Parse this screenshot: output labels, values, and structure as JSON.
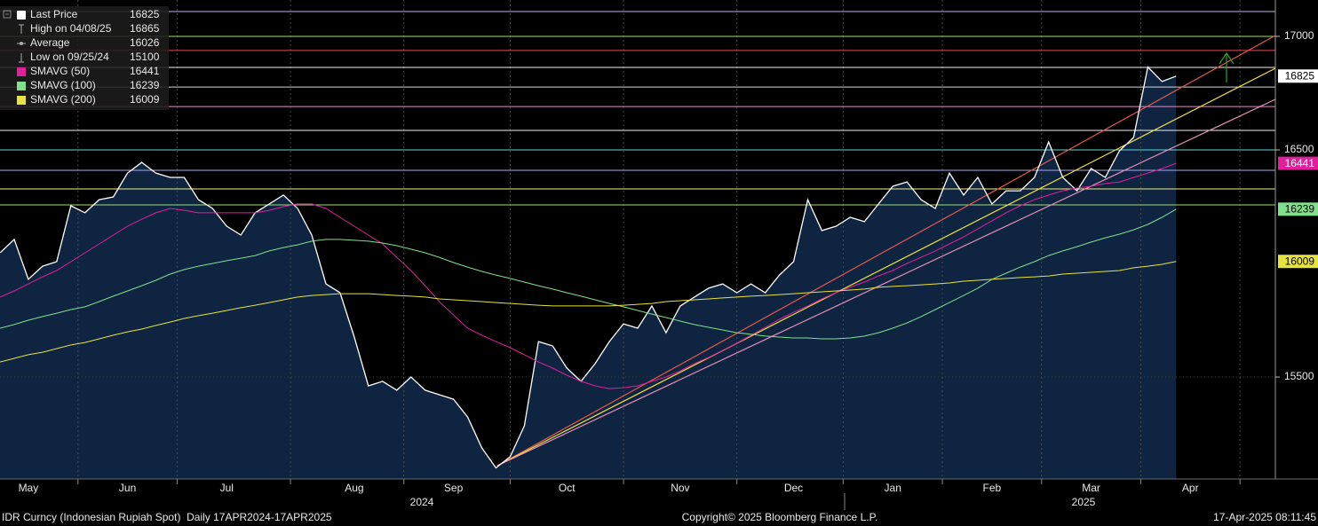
{
  "chart_data": {
    "type": "line",
    "categories": [
      null,
      null,
      "May",
      null,
      null,
      null,
      null,
      null,
      null,
      "Jun",
      null,
      null,
      null,
      null,
      null,
      null,
      "Jul",
      null,
      null,
      null,
      null,
      null,
      null,
      null,
      null,
      "Aug",
      null,
      null,
      null,
      null,
      null,
      null,
      "Sep",
      null,
      null,
      null,
      null,
      null,
      null,
      null,
      "Oct",
      null,
      null,
      null,
      null,
      null,
      null,
      null,
      "Nov",
      null,
      null,
      null,
      null,
      null,
      null,
      null,
      "Dec",
      null,
      null,
      null,
      null,
      null,
      null,
      "Jan",
      null,
      null,
      null,
      null,
      null,
      null,
      "Feb",
      null,
      null,
      null,
      null,
      null,
      null,
      "Mar",
      null,
      null,
      null,
      null,
      null,
      null,
      "Apr",
      null,
      null,
      null,
      null,
      null
    ],
    "years": [
      "2024",
      "2025"
    ],
    "series": [
      {
        "name": "Last Price",
        "color": "#ffffff",
        "fill": "#0e2441",
        "values": [
          16047,
          16106,
          15930,
          15988,
          16008,
          16254,
          16223,
          16281,
          16293,
          16398,
          16445,
          16398,
          16379,
          16379,
          16281,
          16242,
          16164,
          16125,
          16223,
          16262,
          16301,
          16242,
          16125,
          15910,
          15871,
          15676,
          15461,
          15481,
          15442,
          15500,
          15442,
          15422,
          15402,
          15324,
          15188,
          15100,
          15149,
          15285,
          15656,
          15637,
          15539,
          15481,
          15559,
          15656,
          15734,
          15715,
          15813,
          15695,
          15813,
          15852,
          15891,
          15910,
          15871,
          15910,
          15871,
          15949,
          16008,
          16281,
          16145,
          16164,
          16203,
          16184,
          16262,
          16340,
          16359,
          16281,
          16242,
          16398,
          16301,
          16379,
          16262,
          16320,
          16320,
          16379,
          16535,
          16379,
          16320,
          16418,
          16379,
          16496,
          16555,
          16865,
          16801,
          16825,
          null,
          null,
          null,
          null,
          null,
          null
        ]
      },
      {
        "name": "SMAVG (50)",
        "color": "#e0209a",
        "values": [
          15852,
          15879,
          15910,
          15941,
          15969,
          16008,
          16047,
          16086,
          16125,
          16164,
          16195,
          16223,
          16242,
          16234,
          16223,
          16223,
          16223,
          16223,
          16223,
          16234,
          16250,
          16262,
          16262,
          16242,
          16203,
          16164,
          16125,
          16086,
          16027,
          15969,
          15902,
          15832,
          15773,
          15715,
          15684,
          15656,
          15629,
          15598,
          15566,
          15539,
          15508,
          15481,
          15461,
          15449,
          15453,
          15461,
          15481,
          15500,
          15527,
          15559,
          15586,
          15617,
          15649,
          15684,
          15719,
          15754,
          15785,
          15813,
          15844,
          15871,
          15895,
          15918,
          15945,
          15969,
          16000,
          16027,
          16055,
          16086,
          16117,
          16152,
          16188,
          16223,
          16254,
          16281,
          16301,
          16320,
          16332,
          16340,
          16352,
          16359,
          16379,
          16398,
          16418,
          16441,
          null,
          null,
          null,
          null,
          null,
          null
        ]
      },
      {
        "name": "SMAVG (100)",
        "color": "#80e08c",
        "values": [
          15715,
          15731,
          15750,
          15766,
          15781,
          15797,
          15809,
          15832,
          15856,
          15879,
          15902,
          15926,
          15953,
          15973,
          15988,
          16000,
          16012,
          16023,
          16035,
          16055,
          16070,
          16082,
          16098,
          16106,
          16106,
          16102,
          16098,
          16090,
          16078,
          16063,
          16047,
          16027,
          16004,
          15984,
          15965,
          15949,
          15934,
          15918,
          15902,
          15887,
          15871,
          15856,
          15840,
          15824,
          15809,
          15793,
          15777,
          15762,
          15746,
          15731,
          15719,
          15707,
          15695,
          15688,
          15680,
          15676,
          15672,
          15672,
          15668,
          15668,
          15672,
          15680,
          15695,
          15715,
          15738,
          15766,
          15797,
          15828,
          15859,
          15891,
          15930,
          15957,
          15984,
          16008,
          16035,
          16055,
          16074,
          16094,
          16113,
          16129,
          16148,
          16172,
          16203,
          16239,
          null,
          null,
          null,
          null,
          null,
          null
        ]
      },
      {
        "name": "SMAVG (200)",
        "color": "#e8e23c",
        "values": [
          15566,
          15582,
          15598,
          15609,
          15625,
          15641,
          15652,
          15668,
          15684,
          15699,
          15711,
          15727,
          15742,
          15758,
          15770,
          15781,
          15793,
          15805,
          15816,
          15828,
          15840,
          15852,
          15859,
          15863,
          15867,
          15867,
          15867,
          15863,
          15859,
          15856,
          15852,
          15844,
          15840,
          15836,
          15832,
          15828,
          15824,
          15820,
          15816,
          15813,
          15813,
          15813,
          15813,
          15813,
          15816,
          15820,
          15824,
          15832,
          15836,
          15840,
          15844,
          15848,
          15852,
          15856,
          15859,
          15863,
          15867,
          15871,
          15875,
          15879,
          15883,
          15887,
          15895,
          15899,
          15902,
          15906,
          15910,
          15914,
          15922,
          15926,
          15930,
          15934,
          15938,
          15941,
          15945,
          15953,
          15957,
          15961,
          15965,
          15969,
          15981,
          15988,
          15996,
          16009,
          null,
          null,
          null,
          null,
          null,
          null
        ]
      }
    ],
    "stats": [
      {
        "label": "High on 04/08/25",
        "value": 16865
      },
      {
        "label": "Average",
        "value": 16026
      },
      {
        "label": "Low on 09/25/24",
        "value": 15100
      }
    ],
    "reference_lines": [
      {
        "value": 17109,
        "color": "#c8b0f0"
      },
      {
        "value": 17000,
        "color": "#98e070"
      },
      {
        "value": 16938,
        "color": "#e05050"
      },
      {
        "value": 16863,
        "color": "#f0f0f0"
      },
      {
        "value": 16777,
        "color": "#d8d8d8"
      },
      {
        "value": 16691,
        "color": "#e48ccc"
      },
      {
        "value": 16586,
        "color": "#f0f0f0"
      },
      {
        "value": 16500,
        "color": "#60d8d8"
      },
      {
        "value": 16410,
        "color": "#a8a8f0"
      },
      {
        "value": 16328,
        "color": "#f0f080"
      },
      {
        "value": 16258,
        "color": "#98e070"
      }
    ],
    "ylim": [
      15051,
      17160
    ],
    "yticks": [
      15500,
      16500,
      17000
    ],
    "grid": true,
    "source": "IDR Curncy (Indonesian Rupiah Spot)  Daily 17APR2024-17APR2025",
    "copyright": "Copyright© 2025 Bloomberg Finance L.P.",
    "timestamp": "17-Apr-2025 08:11:45"
  }
}
